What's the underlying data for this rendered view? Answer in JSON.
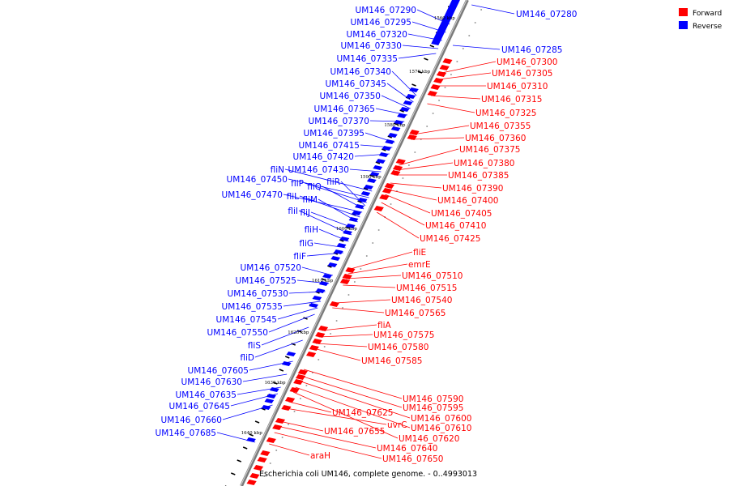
{
  "legend": {
    "items": [
      {
        "label": "Forward",
        "color": "#ff0000"
      },
      {
        "label": "Reverse",
        "color": "#0000ff"
      }
    ]
  },
  "caption": "Escherichia coli UM146, complete genome. - 0..4993013",
  "ticks": [
    "1560 kbp",
    "1570 kbp",
    "1580 kbp",
    "1590 kbp",
    "1600 kbp",
    "1610 kbp",
    "1620 kbp",
    "1630 kbp",
    "1640 kbp"
  ],
  "reverse_labels": [
    "UM146_07290",
    "UM146_07295",
    "UM146_07320",
    "UM146_07330",
    "UM146_07335",
    "UM146_07340",
    "UM146_07345",
    "UM146_07350",
    "UM146_07365",
    "UM146_07370",
    "UM146_07395",
    "UM146_07415",
    "UM146_07420",
    "UM146_07430",
    "fliN",
    "UM146_07450",
    "fliP",
    "fliQ",
    "fliR",
    "UM146_07470",
    "fliL",
    "fliM",
    "fliJ",
    "fliI",
    "fliH",
    "fliG",
    "fliF",
    "UM146_07520",
    "UM146_07525",
    "UM146_07530",
    "UM146_07535",
    "UM146_07545",
    "UM146_07550",
    "fliS",
    "fliD",
    "UM146_07605",
    "UM146_07630",
    "UM146_07635",
    "UM146_07645",
    "UM146_07660",
    "UM146_07685"
  ],
  "reverse_right_labels": [
    "UM146_07280",
    "UM146_07285"
  ],
  "forward_labels": [
    "UM146_07300",
    "UM146_07305",
    "UM146_07310",
    "UM146_07315",
    "UM146_07325",
    "UM146_07355",
    "UM146_07360",
    "UM146_07375",
    "UM146_07380",
    "UM146_07385",
    "UM146_07390",
    "UM146_07400",
    "UM146_07405",
    "UM146_07410",
    "UM146_07425",
    "fliE",
    "emrE",
    "UM146_07510",
    "UM146_07515",
    "UM146_07540",
    "UM146_07565",
    "fliA",
    "UM146_07575",
    "UM146_07580",
    "UM146_07585",
    "UM146_07590",
    "UM146_07595",
    "UM146_07600",
    "UM146_07610",
    "UM146_07620",
    "UM146_07625",
    "uvrC",
    "UM146_07655",
    "UM146_07640",
    "UM146_07650",
    "araH"
  ]
}
